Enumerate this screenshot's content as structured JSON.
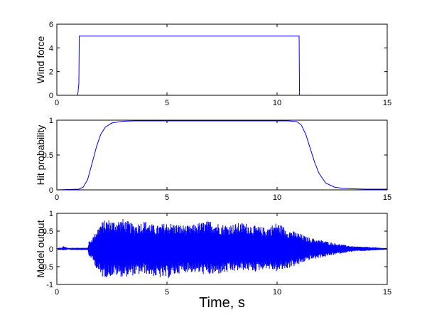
{
  "chart_data": [
    {
      "type": "line",
      "ylabel": "Wind force",
      "xlim": [
        0,
        15
      ],
      "ylim": [
        0,
        6
      ],
      "xticks": [
        0,
        5,
        10,
        15
      ],
      "yticks": [
        0,
        2,
        4,
        6
      ],
      "color": "#0000ff",
      "series": [
        {
          "x": [
            0.95,
            1.0,
            1.02,
            11.0,
            11.02
          ],
          "y": [
            0,
            1,
            5,
            5,
            0
          ]
        }
      ]
    },
    {
      "type": "line",
      "ylabel": "Hit probability",
      "xlim": [
        0,
        15
      ],
      "ylim": [
        0,
        1
      ],
      "xticks": [
        0,
        5,
        10,
        15
      ],
      "yticks": [
        0,
        0.5,
        1
      ],
      "color": "#0000ff",
      "series": [
        {
          "x": [
            0,
            1.0,
            1.2,
            1.4,
            1.6,
            1.8,
            2.0,
            2.2,
            2.5,
            3.0,
            3.5,
            4.0,
            5.0,
            8.0,
            10.5,
            10.9,
            11.1,
            11.3,
            11.5,
            11.7,
            11.9,
            12.2,
            12.6,
            13.0,
            14.0,
            15.0
          ],
          "y": [
            0.0,
            0.01,
            0.04,
            0.15,
            0.38,
            0.62,
            0.8,
            0.9,
            0.96,
            0.985,
            0.99,
            0.99,
            0.99,
            0.99,
            0.99,
            0.98,
            0.93,
            0.8,
            0.6,
            0.4,
            0.24,
            0.1,
            0.04,
            0.02,
            0.01,
            0.01
          ]
        }
      ]
    },
    {
      "type": "line",
      "ylabel": "Model output",
      "xlabel": "Time, s",
      "xlim": [
        0,
        15
      ],
      "ylim": [
        -1,
        1
      ],
      "xticks": [
        0,
        5,
        10,
        15
      ],
      "yticks": [
        -1,
        -0.5,
        0,
        0.5,
        1
      ],
      "color": "#0000ff",
      "envelope": {
        "x": [
          0,
          0.2,
          0.3,
          0.4,
          0.6,
          1.0,
          1.4,
          1.45,
          1.6,
          1.8,
          2.0,
          2.3,
          2.6,
          3.0,
          3.5,
          4.0,
          4.5,
          5.0,
          5.5,
          6.0,
          6.5,
          7.0,
          7.5,
          8.0,
          8.5,
          9.0,
          9.5,
          10.0,
          10.5,
          11.0,
          11.3,
          11.6,
          12.0,
          12.5,
          13.0,
          13.5,
          14.0,
          14.5,
          15.0
        ],
        "upper": [
          0.0,
          0.02,
          0.08,
          0.05,
          0.01,
          0.01,
          0.01,
          0.2,
          0.3,
          0.55,
          0.75,
          0.85,
          0.8,
          0.85,
          0.7,
          0.8,
          0.65,
          0.75,
          0.7,
          0.65,
          0.75,
          0.8,
          0.7,
          0.7,
          0.75,
          0.65,
          0.6,
          0.75,
          0.55,
          0.45,
          0.35,
          0.3,
          0.25,
          0.18,
          0.12,
          0.07,
          0.06,
          0.04,
          0.02
        ],
        "lower": [
          0.0,
          -0.02,
          -0.05,
          -0.03,
          -0.01,
          -0.01,
          -0.01,
          -0.2,
          -0.3,
          -0.55,
          -0.8,
          -0.8,
          -0.75,
          -0.8,
          -0.75,
          -0.7,
          -0.8,
          -0.85,
          -0.7,
          -0.65,
          -0.7,
          -0.75,
          -0.7,
          -0.65,
          -0.6,
          -0.65,
          -0.55,
          -0.65,
          -0.55,
          -0.45,
          -0.35,
          -0.3,
          -0.25,
          -0.18,
          -0.12,
          -0.07,
          -0.06,
          -0.04,
          -0.02
        ]
      }
    }
  ]
}
